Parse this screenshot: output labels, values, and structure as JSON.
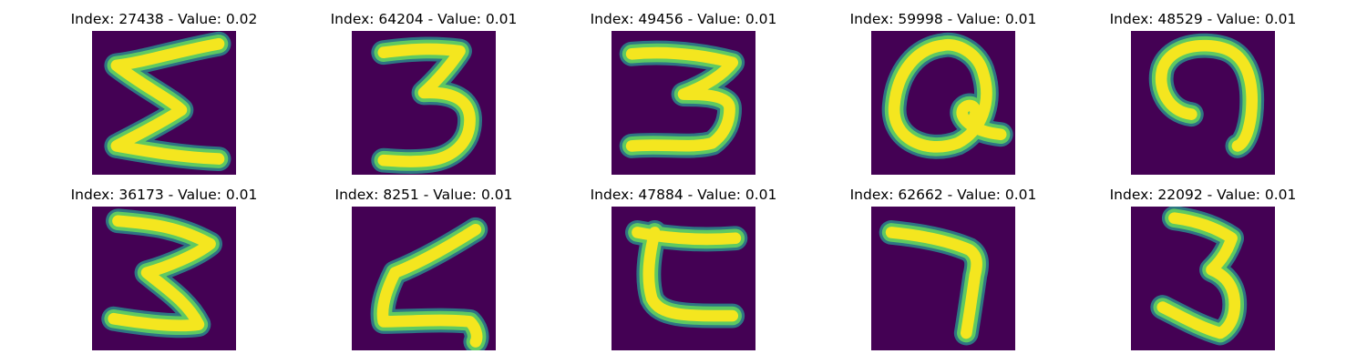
{
  "colors": {
    "background": "#ffffff",
    "image_bg": "#440154",
    "stroke_core": "#f4e61f",
    "stroke_mid": "#5ec962",
    "stroke_edge": "#2a8a8c"
  },
  "panels": [
    {
      "title": "Index: 27438 - Value: 0.02",
      "glyph": "sigma"
    },
    {
      "title": "Index: 64204 - Value: 0.01",
      "glyph": "three-a"
    },
    {
      "title": "Index: 49456 - Value: 0.01",
      "glyph": "three-b"
    },
    {
      "title": "Index: 59998 - Value: 0.01",
      "glyph": "loop-q"
    },
    {
      "title": "Index: 48529 - Value: 0.01",
      "glyph": "hook"
    },
    {
      "title": "Index: 36173 - Value: 0.01",
      "glyph": "three-c"
    },
    {
      "title": "Index: 8251 - Value: 0.01",
      "glyph": "z-curve"
    },
    {
      "title": "Index: 47884 - Value: 0.01",
      "glyph": "c-bar"
    },
    {
      "title": "Index: 62662 - Value: 0.01",
      "glyph": "seven"
    },
    {
      "title": "Index: 22092 - Value: 0.01",
      "glyph": "three-d"
    }
  ]
}
